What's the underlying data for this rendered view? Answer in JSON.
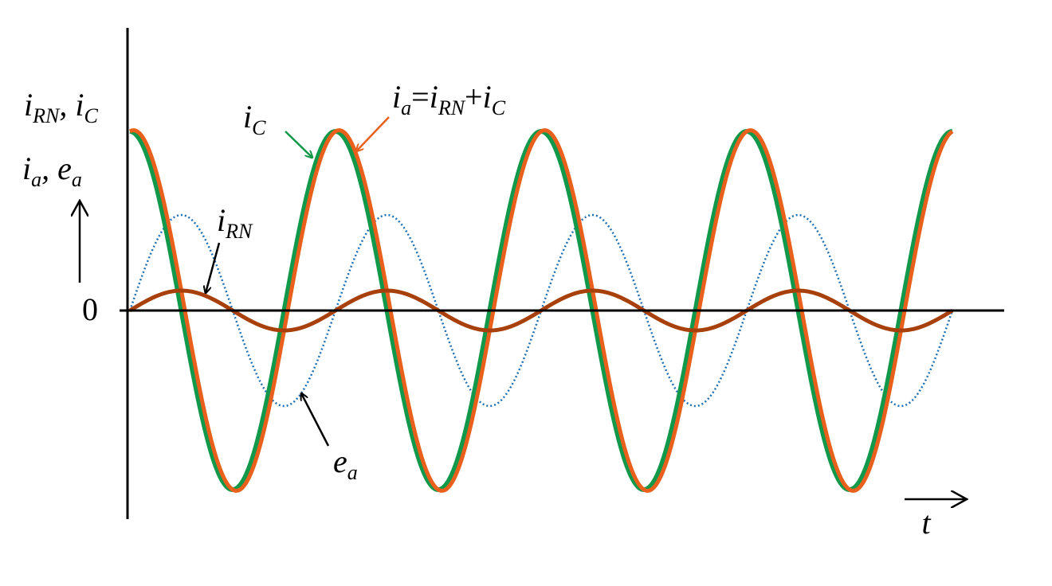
{
  "labels": {
    "y_label_top": [
      {
        "text": "i"
      },
      {
        "sub": "RN"
      },
      {
        "text": ", i"
      },
      {
        "sub": "C"
      }
    ],
    "y_label_bottom": [
      {
        "text": "i"
      },
      {
        "sub": "a"
      },
      {
        "text": ", e"
      },
      {
        "sub": "a"
      }
    ],
    "zero": "0",
    "time": "t",
    "ic": [
      {
        "text": "i"
      },
      {
        "sub": "C"
      }
    ],
    "ia": [
      {
        "text": "i"
      },
      {
        "sub": "a"
      },
      {
        "text": "="
      },
      {
        "text": "i"
      },
      {
        "sub": "RN"
      },
      {
        "text": "+"
      },
      {
        "text": "i"
      },
      {
        "sub": "C"
      }
    ],
    "irn": [
      {
        "text": "i"
      },
      {
        "sub": "RN"
      }
    ],
    "ea": [
      {
        "text": "e"
      },
      {
        "sub": "a"
      }
    ]
  }
}
